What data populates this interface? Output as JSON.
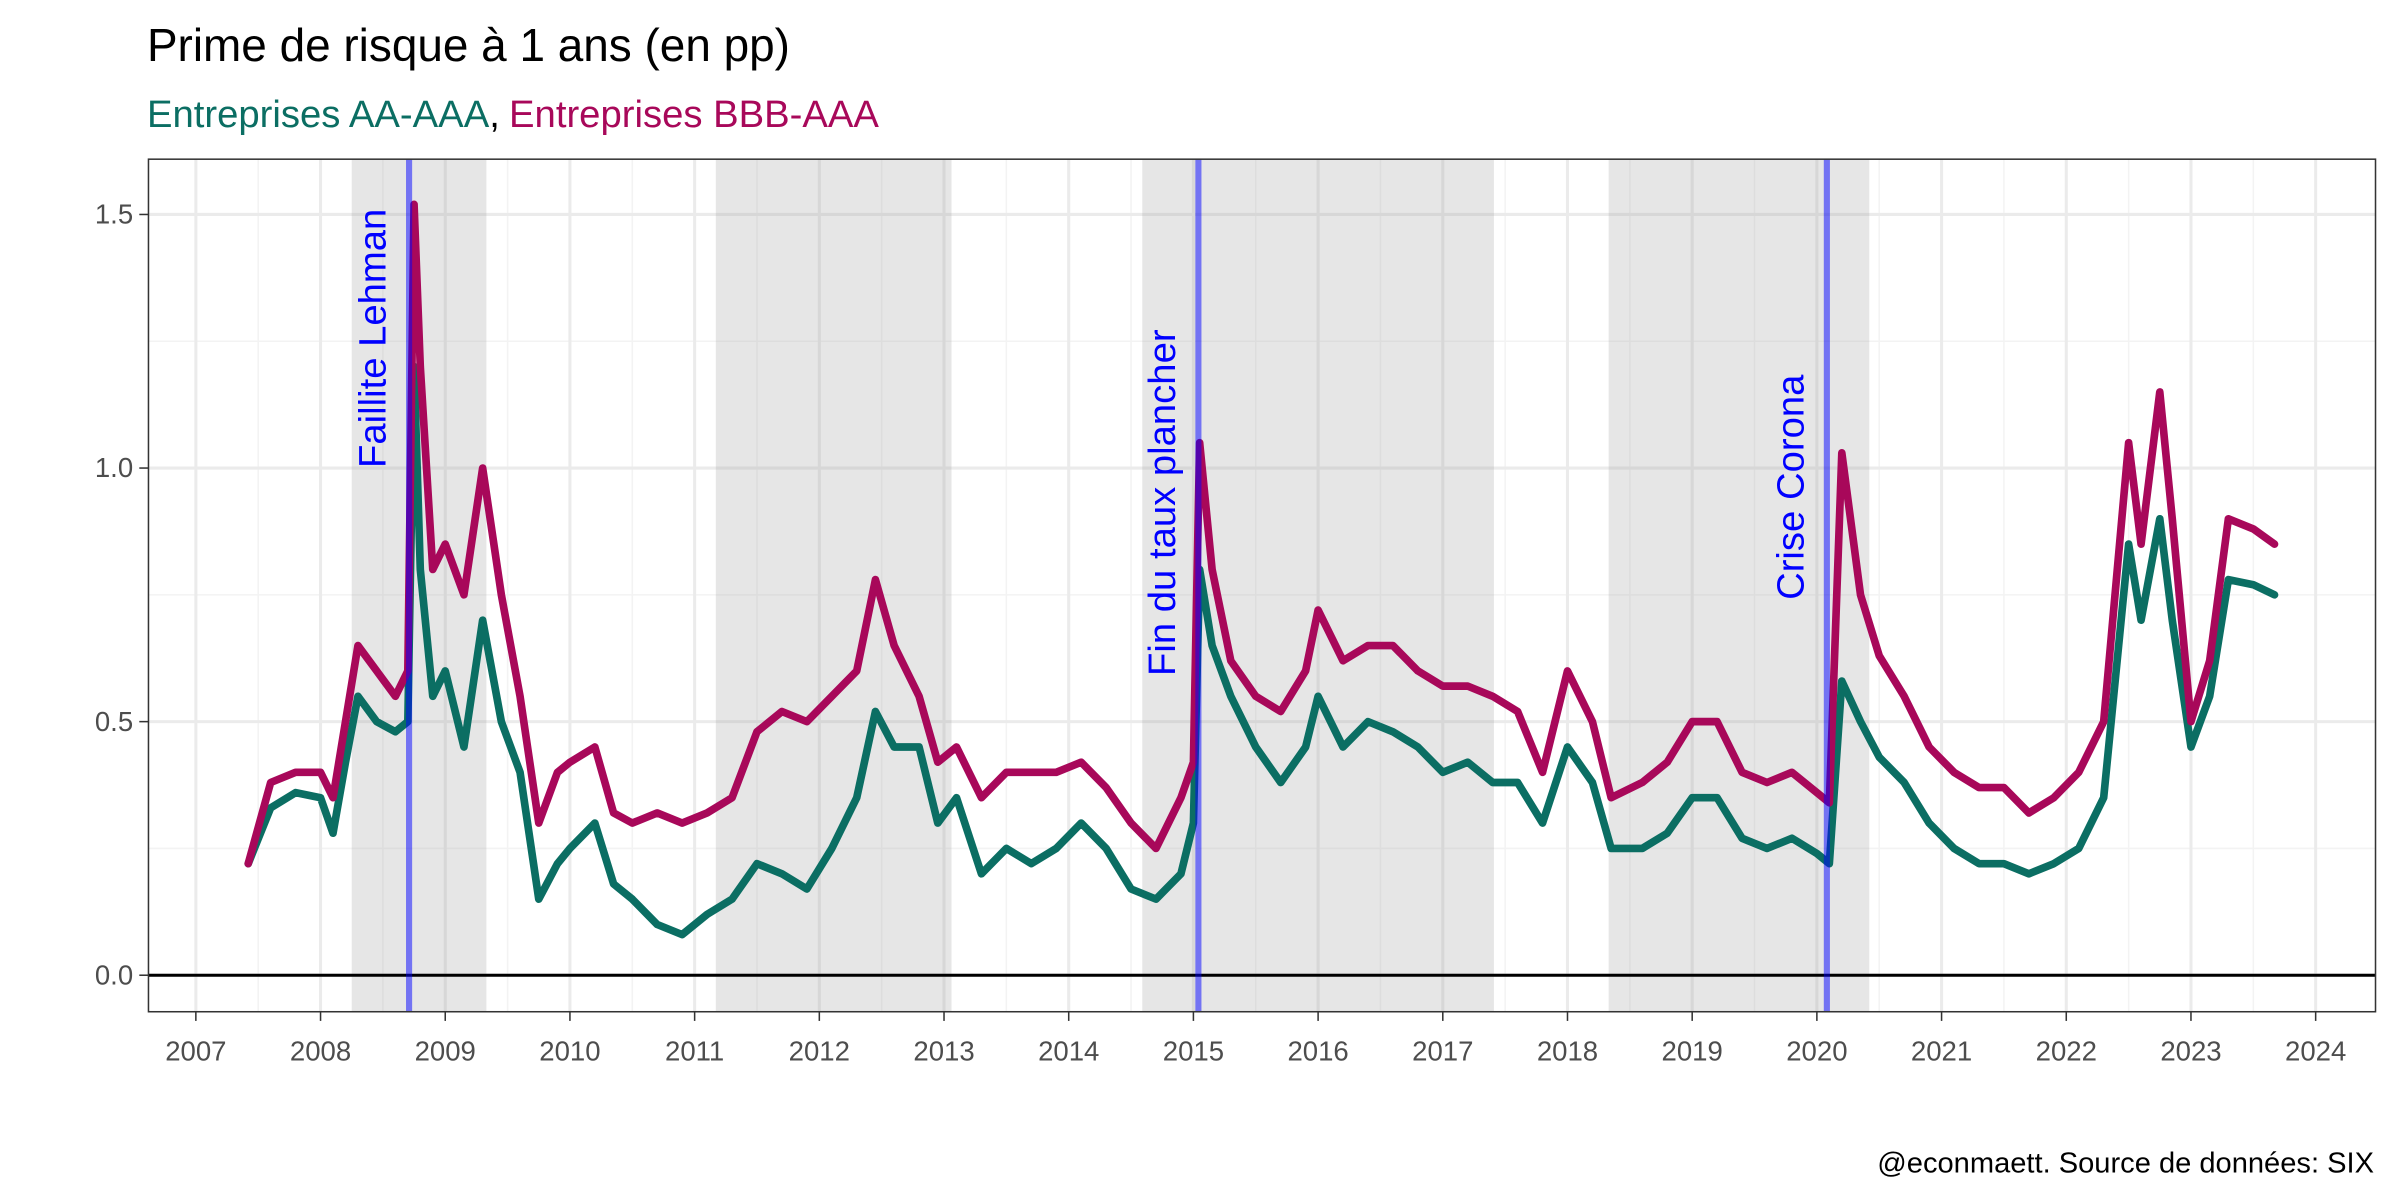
{
  "chart_data": {
    "type": "line",
    "title": "Prime de risque à 1 ans (en pp)",
    "subtitle_separator": ",",
    "caption": "@econmaett. Source de données: SIX",
    "xlim": [
      2006.62,
      2024.48
    ],
    "xticks": [
      2007,
      2008,
      2009,
      2010,
      2011,
      2012,
      2013,
      2014,
      2015,
      2016,
      2017,
      2018,
      2019,
      2020,
      2021,
      2022,
      2023,
      2024
    ],
    "ylim": [
      -0.072,
      1.609
    ],
    "yticks": [
      {
        "value": 0,
        "label": "0.0"
      },
      0.5,
      {
        "value": 1,
        "label": "1.0"
      },
      1.5
    ],
    "grid": true,
    "reference_line": 0,
    "shaded": [
      [
        2008.25,
        2009.33
      ],
      [
        2011.17,
        2013.06
      ],
      [
        2014.59,
        2017.41
      ],
      [
        2018.33,
        2020.42
      ]
    ],
    "events": [
      {
        "x": 2008.71,
        "label": "Faillite Lehman",
        "label_y": 1.0
      },
      {
        "x": 2015.04,
        "label": "Fin du taux plancher",
        "label_y": 0.59
      },
      {
        "x": 2020.08,
        "label": "Crise Corona",
        "label_y": 0.74
      }
    ],
    "event_color": "#0000ff",
    "x": [
      2007.42,
      2007.6,
      2007.8,
      2008.0,
      2008.1,
      2008.2,
      2008.3,
      2008.45,
      2008.6,
      2008.7,
      2008.75,
      2008.8,
      2008.9,
      2009.0,
      2009.15,
      2009.3,
      2009.45,
      2009.6,
      2009.75,
      2009.9,
      2010.0,
      2010.2,
      2010.35,
      2010.5,
      2010.7,
      2010.9,
      2011.1,
      2011.3,
      2011.5,
      2011.7,
      2011.9,
      2012.1,
      2012.3,
      2012.45,
      2012.6,
      2012.8,
      2012.95,
      2013.1,
      2013.3,
      2013.5,
      2013.7,
      2013.9,
      2014.1,
      2014.3,
      2014.5,
      2014.7,
      2014.9,
      2015.0,
      2015.05,
      2015.15,
      2015.3,
      2015.5,
      2015.7,
      2015.9,
      2016.0,
      2016.2,
      2016.4,
      2016.6,
      2016.8,
      2017.0,
      2017.2,
      2017.4,
      2017.6,
      2017.8,
      2018.0,
      2018.2,
      2018.35,
      2018.6,
      2018.8,
      2019.0,
      2019.2,
      2019.4,
      2019.6,
      2019.8,
      2020.0,
      2020.1,
      2020.2,
      2020.35,
      2020.5,
      2020.7,
      2020.9,
      2021.1,
      2021.3,
      2021.5,
      2021.7,
      2021.9,
      2022.1,
      2022.3,
      2022.5,
      2022.6,
      2022.75,
      2022.85,
      2023.0,
      2023.15,
      2023.3,
      2023.5,
      2023.67
    ],
    "series": [
      {
        "name": "Entreprises AA-AAA",
        "color": "#0b6e63",
        "values": [
          0.22,
          0.33,
          0.36,
          0.35,
          0.28,
          0.42,
          0.55,
          0.5,
          0.48,
          0.5,
          1.2,
          0.8,
          0.55,
          0.6,
          0.45,
          0.7,
          0.5,
          0.4,
          0.15,
          0.22,
          0.25,
          0.3,
          0.18,
          0.15,
          0.1,
          0.08,
          0.12,
          0.15,
          0.22,
          0.2,
          0.17,
          0.25,
          0.35,
          0.52,
          0.45,
          0.45,
          0.3,
          0.35,
          0.2,
          0.25,
          0.22,
          0.25,
          0.3,
          0.25,
          0.17,
          0.15,
          0.2,
          0.3,
          0.8,
          0.65,
          0.55,
          0.45,
          0.38,
          0.45,
          0.55,
          0.45,
          0.5,
          0.48,
          0.45,
          0.4,
          0.42,
          0.38,
          0.38,
          0.3,
          0.45,
          0.38,
          0.25,
          0.25,
          0.28,
          0.35,
          0.35,
          0.27,
          0.25,
          0.27,
          0.24,
          0.22,
          0.58,
          0.5,
          0.43,
          0.38,
          0.3,
          0.25,
          0.22,
          0.22,
          0.2,
          0.22,
          0.25,
          0.35,
          0.85,
          0.7,
          0.9,
          0.7,
          0.45,
          0.55,
          0.78,
          0.77,
          0.75
        ]
      },
      {
        "name": "Entreprises BBB-AAA",
        "color": "#a8085a",
        "values": [
          0.22,
          0.38,
          0.4,
          0.4,
          0.35,
          0.5,
          0.65,
          0.6,
          0.55,
          0.6,
          1.52,
          1.2,
          0.8,
          0.85,
          0.75,
          1.0,
          0.75,
          0.55,
          0.3,
          0.4,
          0.42,
          0.45,
          0.32,
          0.3,
          0.32,
          0.3,
          0.32,
          0.35,
          0.48,
          0.52,
          0.5,
          0.55,
          0.6,
          0.78,
          0.65,
          0.55,
          0.42,
          0.45,
          0.35,
          0.4,
          0.4,
          0.4,
          0.42,
          0.37,
          0.3,
          0.25,
          0.35,
          0.42,
          1.05,
          0.8,
          0.62,
          0.55,
          0.52,
          0.6,
          0.72,
          0.62,
          0.65,
          0.65,
          0.6,
          0.57,
          0.57,
          0.55,
          0.52,
          0.4,
          0.6,
          0.5,
          0.35,
          0.38,
          0.42,
          0.5,
          0.5,
          0.4,
          0.38,
          0.4,
          0.36,
          0.34,
          1.03,
          0.75,
          0.63,
          0.55,
          0.45,
          0.4,
          0.37,
          0.37,
          0.32,
          0.35,
          0.4,
          0.5,
          1.05,
          0.85,
          1.15,
          0.9,
          0.5,
          0.62,
          0.9,
          0.88,
          0.85
        ]
      }
    ]
  }
}
